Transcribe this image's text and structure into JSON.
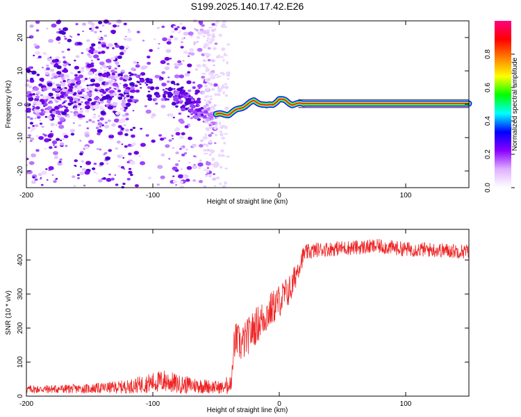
{
  "title": "S199.2025.140.17.42.E26",
  "chart_data": [
    {
      "type": "heatmap",
      "title": "S199.2025.140.17.42.E26",
      "xlabel": "Height of straight line (km)",
      "ylabel": "Frequency (Hz)",
      "xlim": [
        -200,
        150
      ],
      "ylim": [
        -25,
        25
      ],
      "x_ticks": [
        -200,
        -100,
        0,
        100
      ],
      "y_ticks": [
        -20,
        -10,
        0,
        10,
        20
      ],
      "grid": false,
      "colorbar": {
        "label": "Normalized spectral amplitude",
        "range": [
          0,
          1
        ],
        "ticks": [
          0.0,
          0.2,
          0.4,
          0.6,
          0.8
        ],
        "colors": [
          "#ffffff",
          "#e0b0ff",
          "#8a00ff",
          "#0000ff",
          "#00ffff",
          "#00ff00",
          "#ffff00",
          "#ff8000",
          "#ff0000",
          "#ff0080"
        ]
      },
      "features": {
        "noise_region_km": [
          -200,
          -50
        ],
        "noise_center_track_hz": [
          [
            -200,
            2
          ],
          [
            -150,
            4
          ],
          [
            -100,
            6
          ],
          [
            -80,
            3
          ],
          [
            -60,
            -2
          ],
          [
            -50,
            -4
          ]
        ],
        "signal_track": [
          [
            -50,
            -3
          ],
          [
            -40,
            -3
          ],
          [
            -30,
            -1
          ],
          [
            -20,
            1
          ],
          [
            -10,
            -0.5
          ],
          [
            -5,
            0
          ],
          [
            0,
            1.5
          ],
          [
            5,
            1
          ],
          [
            10,
            0
          ],
          [
            20,
            0.2
          ],
          [
            150,
            0.2
          ]
        ]
      }
    },
    {
      "type": "line",
      "xlabel": "Height of straight line (km)",
      "ylabel": "SNR (10 * v/v)",
      "xlim": [
        -200,
        150
      ],
      "ylim": [
        0,
        490
      ],
      "x_ticks": [
        -200,
        -100,
        0,
        100
      ],
      "y_ticks": [
        0,
        100,
        200,
        300,
        400
      ],
      "grid": false,
      "series": [
        {
          "color": "#ee2222",
          "x": [
            -200,
            -150,
            -120,
            -100,
            -90,
            -80,
            -60,
            -45,
            -38,
            -35,
            -30,
            -20,
            -10,
            0,
            10,
            15,
            20,
            30,
            50,
            80,
            100,
            120,
            150
          ],
          "y": [
            20,
            22,
            28,
            40,
            45,
            35,
            30,
            25,
            30,
            170,
            150,
            200,
            240,
            280,
            320,
            380,
            420,
            430,
            435,
            440,
            432,
            430,
            425
          ],
          "noise_amplitude": [
            12,
            14,
            20,
            30,
            35,
            28,
            22,
            18,
            20,
            50,
            55,
            55,
            55,
            50,
            45,
            35,
            25,
            22,
            22,
            22,
            22,
            22,
            22
          ]
        }
      ]
    }
  ]
}
